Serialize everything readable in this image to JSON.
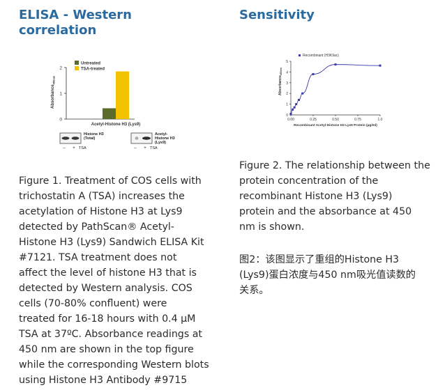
{
  "left": {
    "heading": "ELISA - Western correlation",
    "caption": "Figure 1. Treatment of COS cells with\ntrichostatin A (TSA) increases the\nacetylation of Histone H3 at Lys9\ndetected by PathScan® Acetyl-\nHistone H3 (Lys9) Sandwich ELISA Kit\n#7121. TSA treatment does not\naffect the level of histone H3 that is\ndetected by Western analysis. COS\ncells (70-80% confluent) were\ntreated for 16-18 hours with 0.4 µM\nTSA at 37ºC. Absorbance readings at\n450 nm are shown in the top figure\nwhile the corresponding Western blots\nusing Histone H3 Antibody #9715"
  },
  "right": {
    "heading": "Sensitivity",
    "caption": "Figure 2. The relationship between the\nprotein concentration of the\nrecombinant Histone H3 (Lys9)\nprotein and the absorbance at 450\nnm is shown.",
    "caption_cn": "图2：该图显示了重组的Histone H3\n(Lys9)蛋白浓度与450 nm吸光值读数的\n关系。"
  },
  "blots": {
    "blot1_label": "Histone H3\n(Total)",
    "blot2_label": "Acetyl-\nHistone H3\n(Lys9)",
    "minus": "–",
    "plus": "+",
    "treatment": "TSA"
  },
  "chart_data": [
    {
      "type": "bar",
      "categories": [
        "Acetyl-Histone H3 (Lys9)"
      ],
      "series": [
        {
          "name": "Untreated",
          "values": [
            0.42
          ],
          "color": "#5a6b2c"
        },
        {
          "name": "TSA-treated",
          "values": [
            1.85
          ],
          "color": "#f2c200"
        }
      ],
      "xlabel": "",
      "ylabel": "Absorbance",
      "ylabel_sub": "450nm",
      "ylim": [
        0,
        2
      ],
      "yticks": [
        "0",
        "1",
        "2"
      ],
      "legend_position": "top-left"
    },
    {
      "type": "line",
      "series": [
        {
          "name": "Recombinant (H3K9ac)",
          "color": "#3a3aa8",
          "x": [
            0.0,
            0.02,
            0.04,
            0.06,
            0.09,
            0.13,
            0.25,
            0.5,
            1.0
          ],
          "y": [
            0.1,
            0.5,
            0.7,
            1.0,
            1.4,
            2.0,
            3.8,
            4.7,
            4.6
          ]
        }
      ],
      "xlabel": "Recombinant Acetyl-Histone H3 Lys9 Protein (µg/ml)",
      "ylabel": "Absorbance",
      "ylabel_sub": "450nm",
      "xlim": [
        0,
        1
      ],
      "ylim": [
        0,
        5
      ],
      "xticks": [
        "0.00",
        "0.25",
        "0.50",
        "0.75",
        "1.0"
      ],
      "yticks": [
        "0",
        "1",
        "2",
        "3",
        "4",
        "5"
      ],
      "legend_position": "top-left"
    }
  ]
}
